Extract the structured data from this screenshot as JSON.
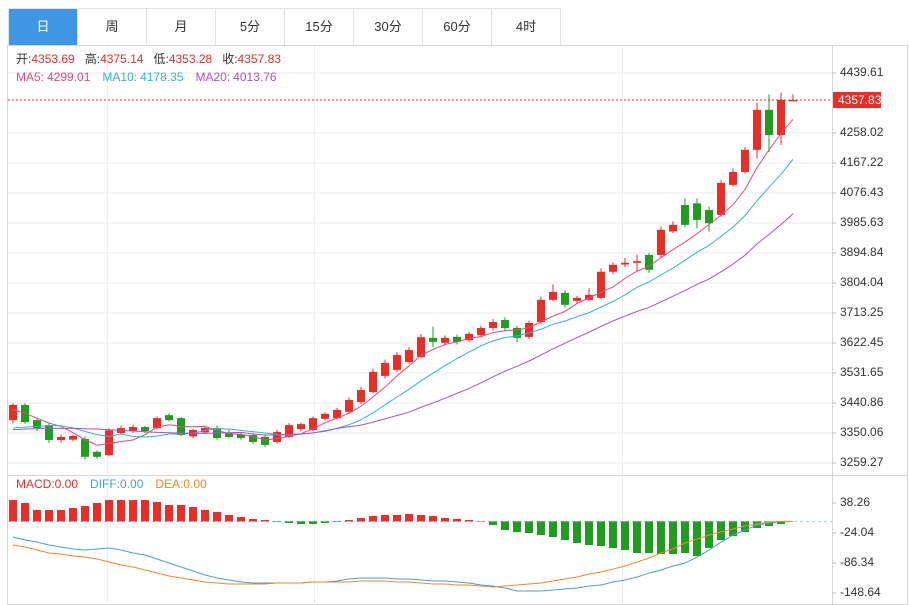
{
  "tabs": {
    "items": [
      "日",
      "周",
      "月",
      "5分",
      "15分",
      "30分",
      "60分",
      "4时"
    ],
    "active": 0
  },
  "chart_data": [
    {
      "type": "candlestick",
      "ohlc_labels": [
        "开:",
        "高:",
        "低:",
        "收:"
      ],
      "up_color": "#ee2b24",
      "down_color": "#1f9d1f",
      "open": [
        3389,
        3435,
        3389,
        3374,
        3329,
        3330,
        3332,
        3293,
        3283,
        3350,
        3356,
        3368,
        3365,
        3404,
        3395,
        3340,
        3352,
        3365,
        3350,
        3346,
        3344,
        3338,
        3323,
        3338,
        3362,
        3359,
        3393,
        3395,
        3414,
        3444,
        3474,
        3523,
        3541,
        3565,
        3580,
        3638,
        3623,
        3641,
        3631,
        3646,
        3668,
        3692,
        3668,
        3641,
        3686,
        3753,
        3774,
        3750,
        3753,
        3759,
        3838,
        3860,
        3865,
        3889,
        3889,
        3960,
        4040,
        4045,
        4025,
        4010,
        4101,
        4140,
        4207,
        4328,
        4252,
        4353.69
      ],
      "high": [
        3440,
        3440,
        3395,
        3380,
        3345,
        3345,
        3340,
        3298,
        3365,
        3372,
        3375,
        3372,
        3400,
        3410,
        3398,
        3362,
        3370,
        3372,
        3360,
        3352,
        3350,
        3345,
        3360,
        3380,
        3382,
        3400,
        3412,
        3426,
        3458,
        3490,
        3545,
        3572,
        3595,
        3610,
        3650,
        3672,
        3645,
        3648,
        3656,
        3675,
        3695,
        3700,
        3675,
        3690,
        3762,
        3800,
        3782,
        3765,
        3788,
        3848,
        3866,
        3880,
        3890,
        3895,
        3975,
        3990,
        4060,
        4060,
        4035,
        4115,
        4150,
        4215,
        4350,
        4375,
        4380,
        4375.14
      ],
      "low": [
        3380,
        3378,
        3356,
        3320,
        3320,
        3325,
        3270,
        3272,
        3280,
        3345,
        3350,
        3350,
        3360,
        3385,
        3340,
        3335,
        3348,
        3330,
        3335,
        3330,
        3318,
        3308,
        3318,
        3334,
        3355,
        3355,
        3388,
        3390,
        3408,
        3438,
        3470,
        3515,
        3535,
        3560,
        3575,
        3610,
        3615,
        3618,
        3625,
        3640,
        3660,
        3660,
        3625,
        3635,
        3680,
        3748,
        3730,
        3742,
        3748,
        3755,
        3830,
        3852,
        3840,
        3835,
        3880,
        3955,
        3972,
        3970,
        3960,
        4005,
        4095,
        4135,
        4180,
        4200,
        4222,
        4353.28
      ],
      "close": [
        3435,
        3383,
        3365,
        3329,
        3338,
        3341,
        3278,
        3278,
        3358,
        3365,
        3368,
        3356,
        3395,
        3389,
        3344,
        3359,
        3365,
        3335,
        3338,
        3335,
        3323,
        3314,
        3353,
        3374,
        3377,
        3395,
        3408,
        3420,
        3450,
        3480,
        3535,
        3562,
        3586,
        3601,
        3640,
        3626,
        3638,
        3626,
        3650,
        3668,
        3686,
        3668,
        3638,
        3683,
        3753,
        3777,
        3738,
        3759,
        3768,
        3838,
        3859,
        3865,
        3870,
        3844,
        3965,
        3980,
        3980,
        3995,
        3985,
        4107,
        4140,
        4207,
        4328,
        4252,
        4358,
        4357.83
      ],
      "series": [
        {
          "name": "MA5:",
          "color": "#e8467e",
          "values": [
            3420,
            3410,
            3395,
            3380,
            3370,
            3351,
            3330,
            3313,
            3319,
            3324,
            3329,
            3345,
            3368,
            3375,
            3370,
            3369,
            3370,
            3358,
            3348,
            3346,
            3339,
            3329,
            3333,
            3340,
            3348,
            3363,
            3381,
            3395,
            3410,
            3431,
            3459,
            3489,
            3523,
            3553,
            3585,
            3603,
            3618,
            3626,
            3636,
            3642,
            3654,
            3660,
            3662,
            3669,
            3686,
            3704,
            3718,
            3742,
            3759,
            3776,
            3792,
            3818,
            3840,
            3855,
            3881,
            3905,
            3928,
            3953,
            3981,
            4009,
            4041,
            4087,
            4153,
            4207,
            4257,
            4299.01
          ]
        },
        {
          "name": "MA10:",
          "color": "#2fb4d6",
          "values": [
            3365,
            3368,
            3370,
            3372,
            3372,
            3365,
            3355,
            3345,
            3340,
            3347,
            3340,
            3338,
            3341,
            3347,
            3347,
            3349,
            3358,
            3363,
            3362,
            3358,
            3354,
            3350,
            3346,
            3344,
            3347,
            3351,
            3355,
            3364,
            3375,
            3390,
            3411,
            3435,
            3459,
            3482,
            3508,
            3531,
            3554,
            3575,
            3595,
            3614,
            3629,
            3639,
            3644,
            3653,
            3664,
            3679,
            3689,
            3702,
            3714,
            3731,
            3748,
            3768,
            3791,
            3807,
            3829,
            3849,
            3873,
            3897,
            3918,
            3945,
            3973,
            4008,
            4053,
            4094,
            4133,
            4178.35
          ]
        },
        {
          "name": "MA20:",
          "color": "#b04fc6",
          "values": [
            3360,
            3362,
            3363,
            3364,
            3364,
            3364,
            3363,
            3362,
            3360,
            3358,
            3356,
            3354,
            3352,
            3351,
            3350,
            3349,
            3349,
            3350,
            3351,
            3352,
            3347,
            3344,
            3344,
            3346,
            3347,
            3350,
            3357,
            3364,
            3369,
            3374,
            3383,
            3393,
            3403,
            3413,
            3428,
            3441,
            3455,
            3470,
            3485,
            3502,
            3520,
            3537,
            3552,
            3568,
            3586,
            3605,
            3622,
            3639,
            3655,
            3673,
            3689,
            3704,
            3718,
            3730,
            3747,
            3764,
            3781,
            3800,
            3816,
            3838,
            3861,
            3888,
            3922,
            3951,
            3981,
            4013.76
          ]
        }
      ],
      "ylim": [
        3222.95,
        4521.3
      ],
      "yticks": [
        4439.61,
        4258.02,
        4167.22,
        4076.43,
        3985.63,
        3894.84,
        3804.04,
        3713.25,
        3622.45,
        3531.65,
        3440.86,
        3350.06,
        3259.27
      ],
      "grid": true
    },
    {
      "type": "macd",
      "up_color": "#ee2b24",
      "down_color": "#1f9d1f",
      "series": [
        {
          "name": "MACD:",
          "kind": "bar",
          "color": "#ee2b24",
          "last_label": "0.00",
          "values": [
            44.4,
            38.2,
            23.7,
            23.7,
            23.7,
            27.8,
            32.0,
            38.2,
            44.4,
            44.4,
            44.4,
            44.4,
            40.3,
            34.1,
            34.1,
            29.9,
            23.7,
            19.5,
            13.3,
            9.1,
            5.0,
            2.9,
            -1.2,
            -3.3,
            -5.4,
            -5.4,
            -3.3,
            -1.2,
            2.9,
            7.1,
            11.2,
            13.3,
            13.3,
            15.4,
            13.3,
            11.2,
            7.1,
            5.0,
            2.9,
            0.8,
            -7.5,
            -17.9,
            -22.0,
            -24.1,
            -28.2,
            -32.4,
            -38.6,
            -44.9,
            -49.0,
            -51.1,
            -55.2,
            -59.4,
            -65.6,
            -65.6,
            -67.7,
            -67.7,
            -65.6,
            -71.8,
            -55.2,
            -38.6,
            -30.3,
            -22.0,
            -13.7,
            -9.6,
            -5.4,
            0
          ]
        },
        {
          "name": "DIFF:",
          "kind": "line",
          "color": "#4a9ee2",
          "last_label": "0.00",
          "values": [
            -32.4,
            -38.6,
            -42.8,
            -49.0,
            -53.2,
            -57.3,
            -59.4,
            -57.3,
            -55.2,
            -59.4,
            -65.6,
            -69.8,
            -78.1,
            -86.4,
            -94.7,
            -103.0,
            -111.3,
            -117.5,
            -121.7,
            -125.9,
            -127.9,
            -127.9,
            -127.9,
            -127.9,
            -127.9,
            -125.9,
            -125.9,
            -123.8,
            -119.6,
            -117.5,
            -117.5,
            -117.5,
            -119.6,
            -119.6,
            -121.7,
            -123.8,
            -123.8,
            -125.9,
            -127.9,
            -132.1,
            -134.2,
            -138.3,
            -144.5,
            -144.5,
            -144.5,
            -142.5,
            -140.4,
            -138.3,
            -134.2,
            -132.1,
            -125.9,
            -121.7,
            -115.5,
            -107.2,
            -100.9,
            -92.6,
            -86.4,
            -73.9,
            -59.4,
            -42.8,
            -28.2,
            -17.9,
            -7.5,
            -3.3,
            -0.8,
            0
          ]
        },
        {
          "name": "DEA:",
          "kind": "line",
          "color": "#f08a2a",
          "last_label": "0.00",
          "values": [
            -49.0,
            -53.2,
            -59.4,
            -65.6,
            -67.7,
            -71.8,
            -73.9,
            -78.1,
            -84.3,
            -90.5,
            -94.7,
            -100.9,
            -107.2,
            -113.4,
            -117.5,
            -121.7,
            -125.9,
            -127.9,
            -130.0,
            -130.0,
            -130.0,
            -130.0,
            -127.9,
            -127.9,
            -127.9,
            -125.9,
            -125.9,
            -125.9,
            -125.9,
            -123.8,
            -123.8,
            -123.8,
            -125.9,
            -125.9,
            -127.9,
            -130.0,
            -130.0,
            -132.1,
            -132.1,
            -134.2,
            -136.2,
            -134.2,
            -132.1,
            -130.0,
            -127.9,
            -123.8,
            -119.6,
            -115.5,
            -109.2,
            -105.1,
            -98.9,
            -92.6,
            -84.3,
            -76.0,
            -65.6,
            -57.3,
            -44.9,
            -36.6,
            -28.2,
            -22.0,
            -15.8,
            -9.6,
            -5.4,
            -1.2,
            -0.2,
            0
          ]
        }
      ],
      "ylim": [
        -173.56,
        90.18
      ],
      "yticks": [
        38.26,
        -24.04,
        -86.34,
        -148.64
      ],
      "zero_line": true
    }
  ]
}
